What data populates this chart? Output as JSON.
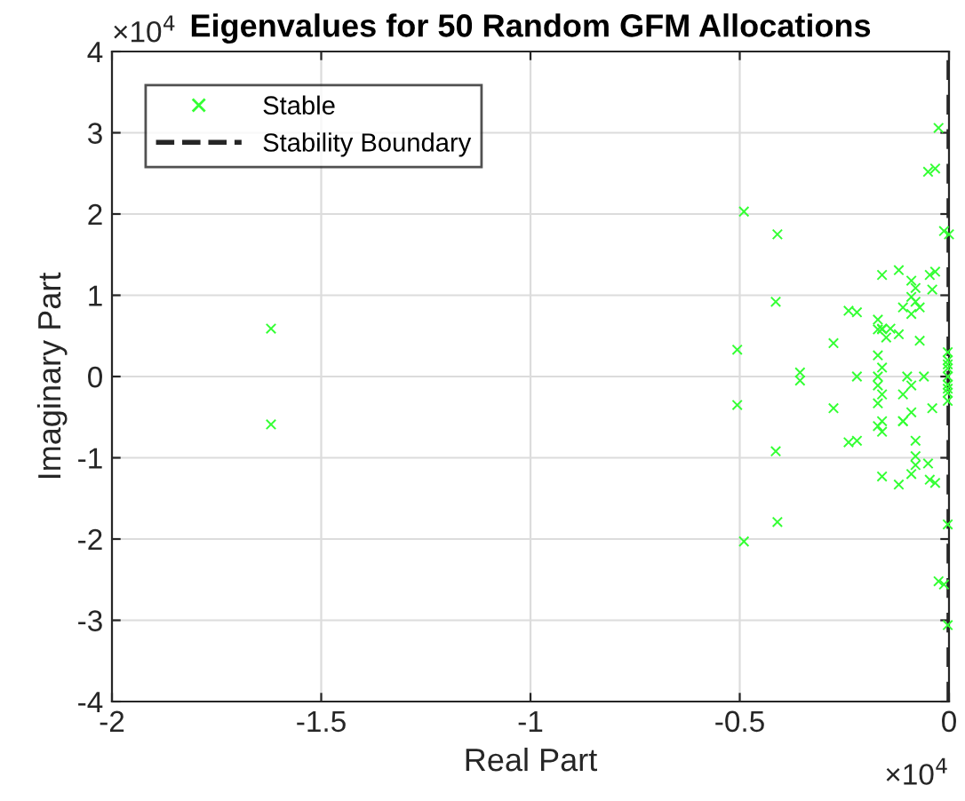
{
  "chart_data": {
    "type": "scatter",
    "title": "Eigenvalues for 50 Random GFM Allocations",
    "xlabel": "Real Part",
    "ylabel": "Imaginary Part",
    "series": [
      {
        "name": "Stable",
        "color": "#33ff33",
        "x": [
          -1.62,
          -1.62,
          -0.41,
          -0.506,
          -0.506,
          -0.414,
          -0.414,
          -0.41,
          -0.49,
          -0.49,
          -0.276,
          -0.276,
          -0.356,
          -0.356,
          -0.22,
          -0.24,
          -0.22,
          -0.24,
          -0.22,
          -0.16,
          -0.12,
          -0.16,
          -0.12,
          -0.046,
          -0.033,
          -0.046,
          -0.033,
          -0.17,
          -0.17,
          -0.16,
          -0.17,
          -0.16,
          -0.17,
          -0.17,
          -0.16,
          -0.17,
          -0.16,
          -0.17,
          -0.16,
          -0.15,
          -0.16,
          -0.14,
          -0.12,
          -0.11,
          -0.09,
          -0.08,
          -0.09,
          -0.08,
          -0.07,
          -0.1,
          -0.11,
          -0.11,
          -0.09,
          -0.06,
          -0.11,
          -0.09,
          -0.08,
          -0.08,
          -0.09,
          -0.09,
          -0.08,
          -0.07,
          -0.04,
          -0.04,
          -0.05,
          -0.05,
          -0.033,
          -0.025,
          -0.012,
          -0.025,
          -0.012,
          0,
          -0.003,
          -0.003,
          -0.003,
          -0.003,
          -0.003,
          -0.003,
          -0.003,
          -0.003,
          -0.003,
          -0.003,
          -0.003
        ],
        "values": [
          0.59,
          -0.59,
          1.75,
          0.33,
          -0.35,
          0.92,
          -0.92,
          -1.79,
          2.03,
          -2.03,
          0.41,
          -0.39,
          0.05,
          -0.05,
          0,
          0.81,
          0.79,
          -0.81,
          -0.79,
          1.25,
          1.31,
          -1.23,
          -1.33,
          1.25,
          1.29,
          -1.27,
          -1.31,
          0.7,
          0.58,
          0.58,
          0.26,
          0.11,
          0,
          -0.11,
          -0.22,
          -0.33,
          -0.55,
          -0.61,
          -0.68,
          0.48,
          0.59,
          0.59,
          0.52,
          0.85,
          0.98,
          1.09,
          1.18,
          0.92,
          0.85,
          0,
          -0.55,
          -0.55,
          -0.44,
          0,
          -0.22,
          -0.11,
          -0.98,
          -1.09,
          -1.2,
          0.77,
          -0.79,
          0.44,
          -0.39,
          1.07,
          -1.07,
          2.52,
          2.56,
          -2.52,
          -2.56,
          3.06,
          1.79,
          1.75,
          -1.82,
          -3.06,
          0.1,
          -0.1,
          0.2,
          -0.2,
          0.3,
          -0.3,
          0,
          0.15,
          -0.15
        ]
      }
    ],
    "xlim": [
      -2,
      0
    ],
    "ylim": [
      -4,
      4
    ],
    "xticks": [
      -2,
      -1.5,
      -1,
      -0.5,
      0
    ],
    "yticks": [
      -4,
      -3,
      -2,
      -1,
      0,
      1,
      2,
      3,
      4
    ],
    "ref_lines": [
      {
        "axis": "x",
        "value": 0,
        "label": "Stability Boundary",
        "color": "#262626",
        "line_style": "dashed"
      }
    ],
    "annotations": [
      "×10$^{4}$",
      "×10$^{4}$"
    ],
    "marker": "cross",
    "grid": true,
    "legend": "top left"
  }
}
